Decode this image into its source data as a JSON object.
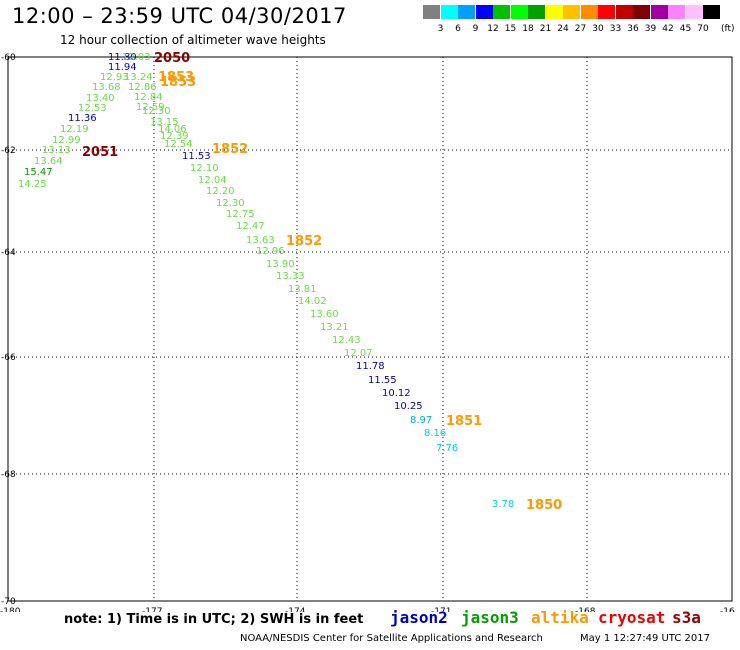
{
  "header": {
    "title": "12:00 – 23:59 UTC 04/30/2017",
    "subtitle": "12 hour collection of altimeter wave heights"
  },
  "legend": {
    "colors": [
      "#808080",
      "#00ffff",
      "#00a0ff",
      "#0000ff",
      "#00c000",
      "#00ff00",
      "#00a000",
      "#ffff00",
      "#ffc000",
      "#ff8c00",
      "#ff0000",
      "#c00000",
      "#800000",
      "#a000a0",
      "#ff80ff",
      "#ffc0ff",
      "#000000"
    ],
    "labels": [
      "3",
      "6",
      "9",
      "12",
      "15",
      "18",
      "21",
      "24",
      "27",
      "30",
      "33",
      "36",
      "39",
      "42",
      "45",
      "70"
    ],
    "unit": "(ft)"
  },
  "axes": {
    "lat_labels": [
      "-60",
      "-62",
      "-64",
      "-66",
      "-68",
      "-70"
    ],
    "lon_labels": [
      "-180",
      "-177",
      "-174",
      "-171",
      "-168",
      "-16"
    ]
  },
  "footer": {
    "note": "note: 1) Time is in UTC; 2) SWH is in feet",
    "satellites": [
      {
        "name": "jason2",
        "color": "#0000cc"
      },
      {
        "name": "jason3",
        "color": "#00a000"
      },
      {
        "name": "altika",
        "color": "#ff9900"
      },
      {
        "name": "cryosat",
        "color": "#ee0000"
      },
      {
        "name": "s3a",
        "color": "#990000"
      }
    ],
    "credit": "NOAA/NESDIS Center for Satellite Applications and Research",
    "timestamp": "May  1 12:27:49 UTC 2017"
  },
  "map_data": {
    "lat_range": [
      -60,
      -70
    ],
    "lon_range": [
      -180,
      -165
    ],
    "heights": [
      {
        "v": "11.80",
        "c": "#0000cc"
      },
      {
        "v": "11.94",
        "c": "#0000cc"
      },
      {
        "v": "12.03",
        "c": "#66dd44"
      },
      {
        "v": "12.93",
        "c": "#66dd44"
      },
      {
        "v": "13.24",
        "c": "#66dd44"
      },
      {
        "v": "12.86",
        "c": "#66dd44"
      },
      {
        "v": "13.68",
        "c": "#66dd44"
      },
      {
        "v": "12.84",
        "c": "#66dd44"
      },
      {
        "v": "13.40",
        "c": "#66dd44"
      },
      {
        "v": "12.59",
        "c": "#66dd44"
      },
      {
        "v": "12.53",
        "c": "#66dd44"
      },
      {
        "v": "12.30",
        "c": "#66dd44"
      },
      {
        "v": "11.36",
        "c": "#0000cc"
      },
      {
        "v": "13.15",
        "c": "#66dd44"
      },
      {
        "v": "12.19",
        "c": "#66dd44"
      },
      {
        "v": "14.06",
        "c": "#66dd44"
      },
      {
        "v": "12.99",
        "c": "#66dd44"
      },
      {
        "v": "12.39",
        "c": "#66dd44"
      },
      {
        "v": "12.54",
        "c": "#66dd44"
      },
      {
        "v": "13.13",
        "c": "#66dd44"
      },
      {
        "v": "11.53",
        "c": "#0000cc"
      },
      {
        "v": "13.64",
        "c": "#66dd44"
      },
      {
        "v": "15.47",
        "c": "#009900"
      },
      {
        "v": "12.10",
        "c": "#66dd44"
      },
      {
        "v": "14.25",
        "c": "#66dd44"
      },
      {
        "v": "12.04",
        "c": "#66dd44"
      },
      {
        "v": "12.20",
        "c": "#66dd44"
      },
      {
        "v": "12.30",
        "c": "#66dd44"
      },
      {
        "v": "12.75",
        "c": "#66dd44"
      },
      {
        "v": "12.47",
        "c": "#66dd44"
      },
      {
        "v": "13.63",
        "c": "#66dd44"
      },
      {
        "v": "12.96",
        "c": "#66dd44"
      },
      {
        "v": "13.90",
        "c": "#66dd44"
      },
      {
        "v": "13.33",
        "c": "#66dd44"
      },
      {
        "v": "13.81",
        "c": "#66dd44"
      },
      {
        "v": "14.02",
        "c": "#66dd44"
      },
      {
        "v": "13.60",
        "c": "#66dd44"
      },
      {
        "v": "13.21",
        "c": "#66dd44"
      },
      {
        "v": "12.43",
        "c": "#66dd44"
      },
      {
        "v": "12.07",
        "c": "#66dd44"
      },
      {
        "v": "11.78",
        "c": "#0000cc"
      },
      {
        "v": "11.55",
        "c": "#0000cc"
      },
      {
        "v": "10.12",
        "c": "#0000cc"
      },
      {
        "v": "10.25",
        "c": "#0000cc"
      },
      {
        "v": "8.97",
        "c": "#00aadd"
      },
      {
        "v": "8.16",
        "c": "#00ccee"
      },
      {
        "v": "7.76",
        "c": "#00ccee"
      },
      {
        "v": "3.78",
        "c": "#00ccee"
      }
    ],
    "pass_times": [
      {
        "v": "2050",
        "c": "#880000"
      },
      {
        "v": "1853",
        "c": "#ff9900"
      },
      {
        "v": "1853",
        "c": "#ff9900"
      },
      {
        "v": "2051",
        "c": "#880000"
      },
      {
        "v": "1852",
        "c": "#ff9900"
      },
      {
        "v": "1852",
        "c": "#ff9900"
      },
      {
        "v": "1851",
        "c": "#ff9900"
      },
      {
        "v": "1850",
        "c": "#ff9900"
      }
    ]
  }
}
